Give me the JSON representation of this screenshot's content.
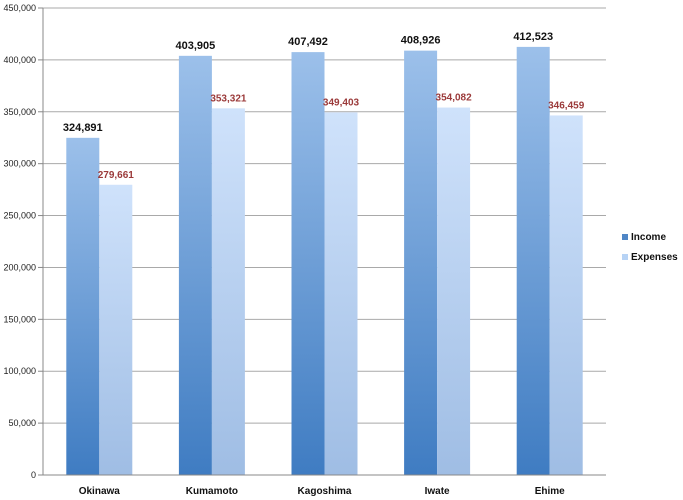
{
  "chart_data": {
    "type": "bar",
    "title": "",
    "xlabel": "",
    "ylabel": "",
    "categories": [
      "Okinawa",
      "Kumamoto",
      "Kagoshima",
      "Iwate",
      "Ehime"
    ],
    "series": [
      {
        "name": "Income",
        "values": [
          324891,
          403905,
          407492,
          408926,
          412523
        ],
        "labels": [
          "324,891",
          "403,905",
          "407,492",
          "408,926",
          "412,523"
        ],
        "color": "#4f86c6"
      },
      {
        "name": "Expenses",
        "values": [
          279661,
          353321,
          349403,
          354082,
          346459
        ],
        "labels": [
          "279,661",
          "353,321",
          "349,403",
          "354,082",
          "346,459"
        ],
        "color": "#b7d3f5"
      }
    ],
    "ylim": [
      0,
      450000
    ],
    "yticks": [
      0,
      50000,
      100000,
      150000,
      200000,
      250000,
      300000,
      350000,
      400000,
      450000
    ],
    "ytick_labels": [
      "0",
      "50,000",
      "100,000",
      "150,000",
      "200,000",
      "250,000",
      "300,000",
      "350,000",
      "400,000",
      "450,000"
    ],
    "grid": true,
    "legend_position": "right",
    "data_label_colors": {
      "Income": "#111111",
      "Expenses": "#9b3a3a"
    }
  }
}
